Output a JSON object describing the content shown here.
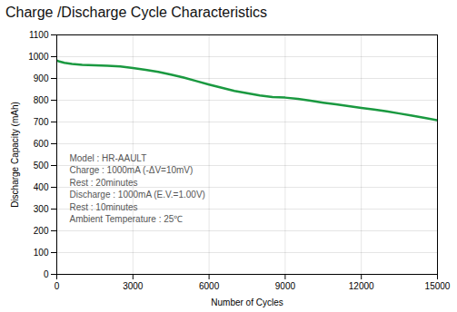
{
  "chart_data": {
    "type": "line",
    "title": "Charge /Discharge Cycle Characteristics",
    "xlabel": "Number of Cycles",
    "ylabel": "Discharge Capacity (mAh)",
    "x": [
      0,
      100,
      300,
      600,
      1000,
      1500,
      2000,
      2500,
      3000,
      3500,
      4000,
      4500,
      5000,
      5500,
      6000,
      6500,
      7000,
      7500,
      8000,
      8500,
      9000,
      9500,
      10000,
      10500,
      11000,
      11500,
      12000,
      12500,
      13000,
      13500,
      14000,
      14500,
      15000
    ],
    "values": [
      983,
      978,
      972,
      967,
      963,
      960,
      958,
      955,
      948,
      940,
      930,
      918,
      904,
      888,
      872,
      857,
      843,
      832,
      822,
      815,
      812,
      806,
      798,
      789,
      781,
      773,
      765,
      757,
      749,
      739,
      729,
      719,
      708
    ],
    "color": "#1a9940",
    "xlim": [
      0,
      15000
    ],
    "ylim": [
      0,
      1100
    ],
    "xticks": [
      0,
      3000,
      6000,
      9000,
      12000,
      15000
    ],
    "yticks": [
      0,
      100,
      200,
      300,
      400,
      500,
      600,
      700,
      800,
      900,
      1000,
      1100
    ],
    "grid": true,
    "annotations": [
      {
        "text": "Model : HR-AAULT\nCharge : 1000mA (-ΔV=10mV)\nRest : 20minutes\nDischarge : 1000mA (E.V.=1.00V)\nRest : 10minutes\nAmbient Temperature : 25℃",
        "x": 500,
        "y": 560
      }
    ]
  }
}
